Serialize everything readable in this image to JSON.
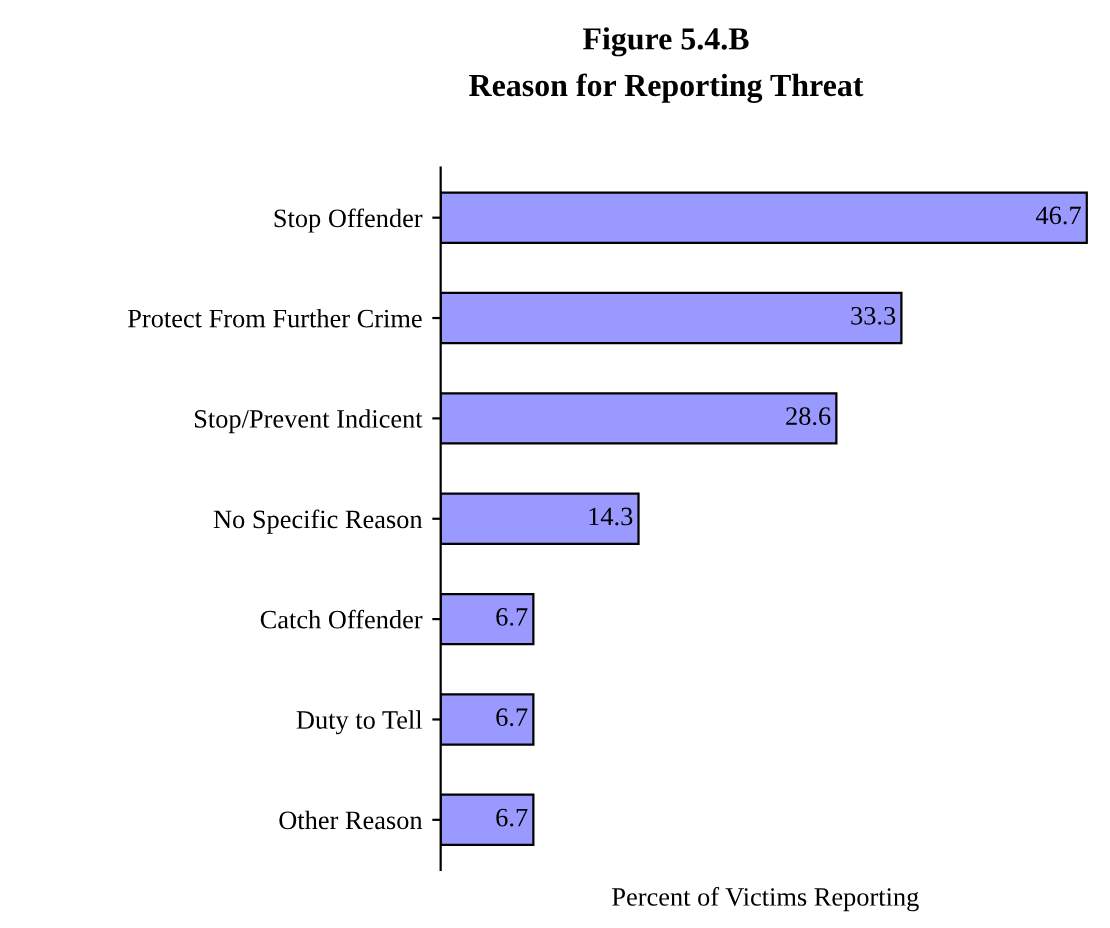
{
  "chart_data": {
    "type": "bar",
    "orientation": "horizontal",
    "title": "Figure 5.4.B",
    "subtitle": "Reason for Reporting Threat",
    "xlabel": "Percent of Victims Reporting",
    "categories": [
      "Stop Offender",
      "Protect From Further Crime",
      "Stop/Prevent Indicent",
      "No Specific Reason",
      "Catch Offender",
      "Duty to Tell",
      "Other Reason"
    ],
    "values": [
      46.7,
      33.3,
      28.6,
      14.3,
      6.7,
      6.7,
      6.7
    ],
    "color": "#9999ff",
    "data_labels": true,
    "grid": false,
    "legend": false,
    "tick_labels": "y"
  }
}
